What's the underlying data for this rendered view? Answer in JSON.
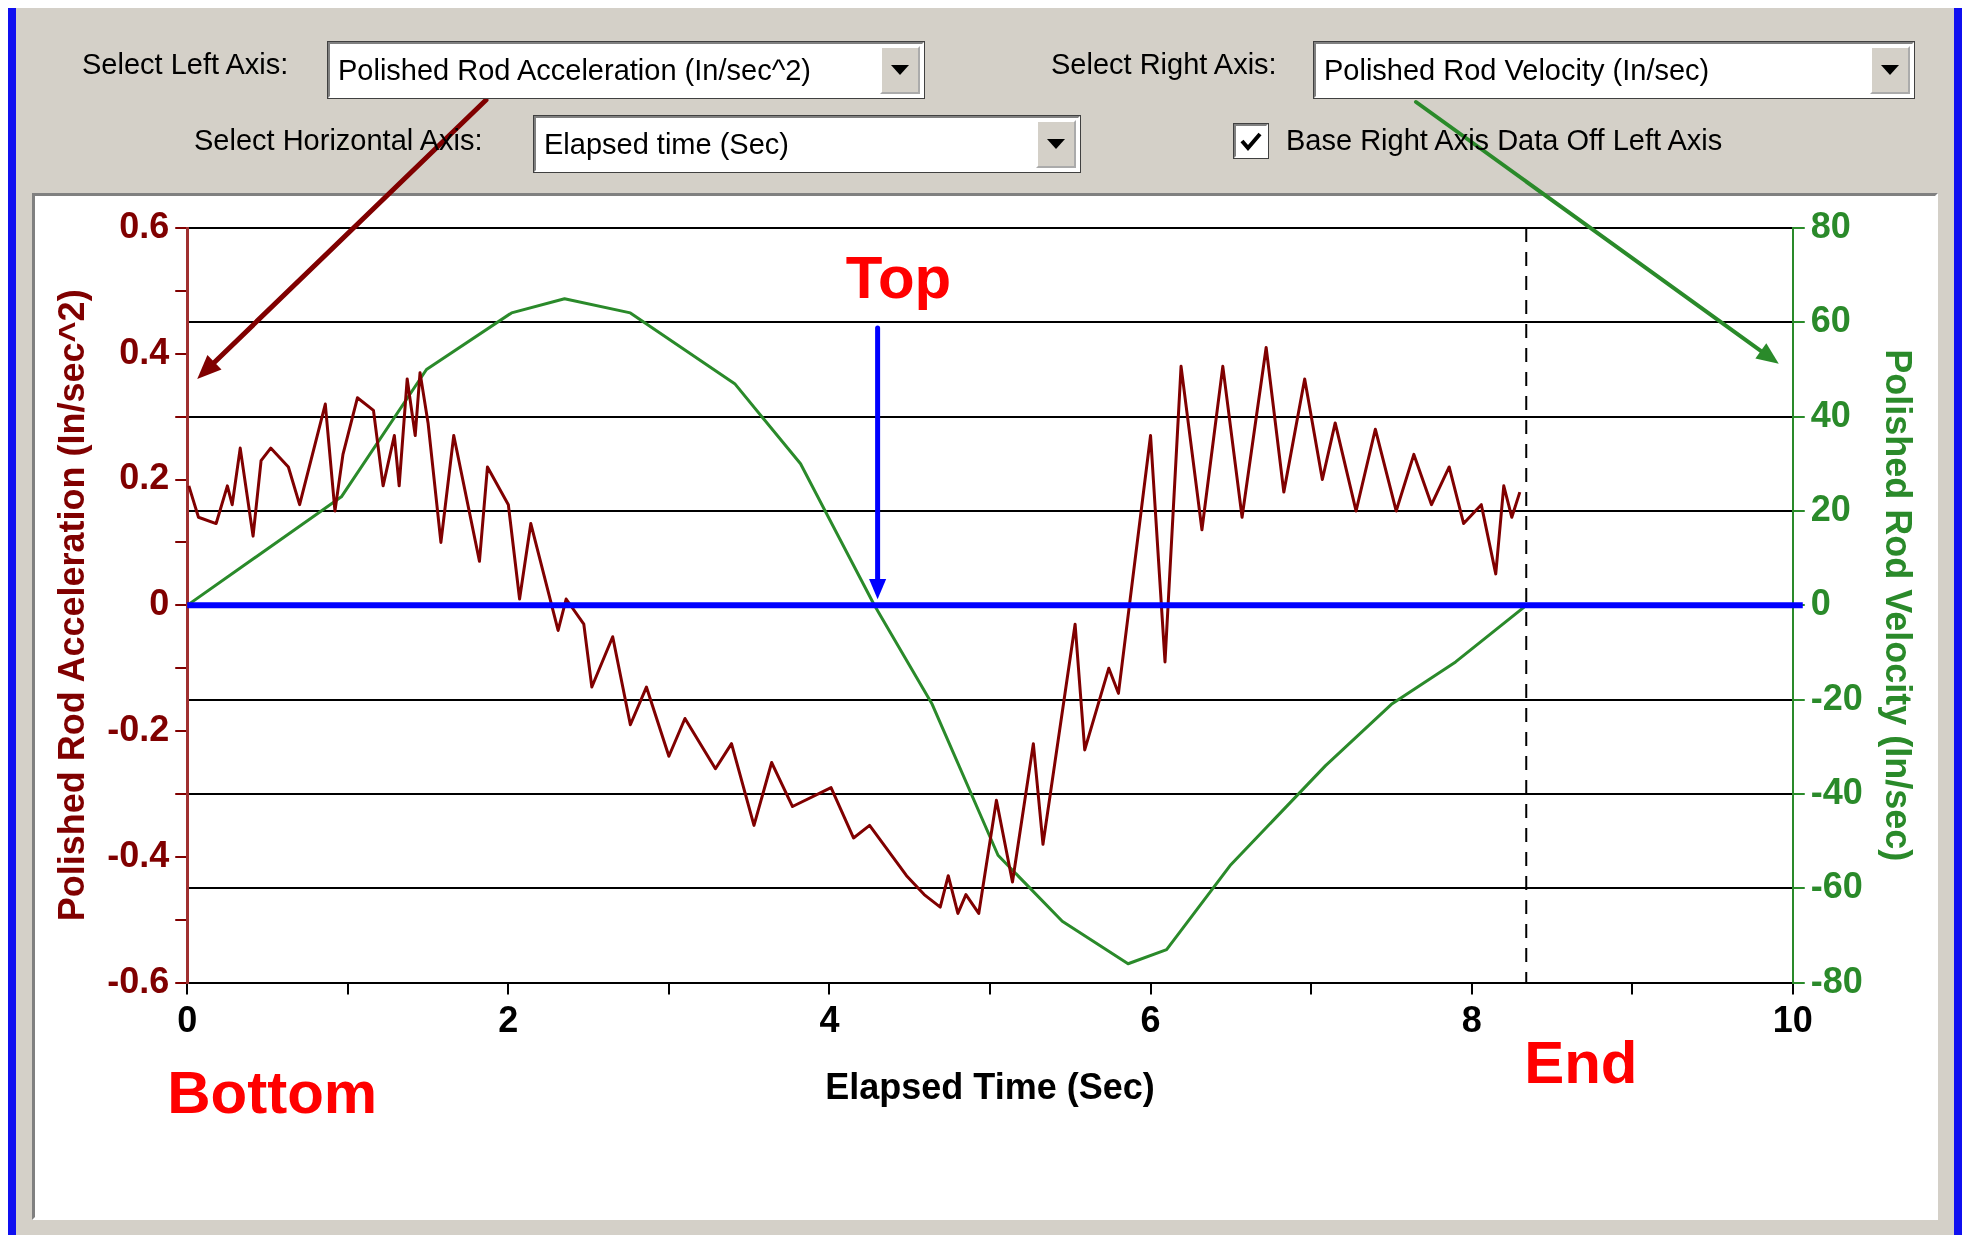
{
  "chart_data": {
    "type": "line",
    "xlabel": "Elapsed Time (Sec)",
    "ylabel": "Polished Rod Acceleration (In/sec^2)",
    "y2label": "Polished Rod Velocity (In/sec)",
    "xlim": [
      0,
      10
    ],
    "xticks": [
      0,
      {
        "value": 1,
        "label": null
      },
      2,
      {
        "value": 3,
        "label": null
      },
      4,
      {
        "value": 5,
        "label": null
      },
      6,
      {
        "value": 7,
        "label": null
      },
      8,
      {
        "value": 9,
        "label": null
      },
      10
    ],
    "ylim": [
      -0.6,
      0.6
    ],
    "yticks": [
      -0.6,
      {
        "value": -0.5,
        "label": null
      },
      -0.4,
      {
        "value": -0.3,
        "label": null
      },
      -0.2,
      {
        "value": -0.1,
        "label": null
      },
      0,
      {
        "value": 0.1,
        "label": null
      },
      0.2,
      {
        "value": 0.3,
        "label": null
      },
      0.4,
      {
        "value": 0.5,
        "label": null
      },
      0.6
    ],
    "y2lim": [
      -80,
      80
    ],
    "y2ticks": [
      -80,
      -60,
      -40,
      -20,
      0,
      20,
      40,
      60,
      80
    ],
    "grid": "y",
    "legend": false,
    "marker": "none",
    "line_style": "solid",
    "series": [
      {
        "color": "#800000",
        "x": [
          0.01,
          0.07,
          0.18,
          0.25,
          0.28,
          0.33,
          0.41,
          0.46,
          0.52,
          0.63,
          0.7,
          0.86,
          0.92,
          0.97,
          1.06,
          1.16,
          1.22,
          1.29,
          1.32,
          1.37,
          1.42,
          1.45,
          1.5,
          1.58,
          1.66,
          1.82,
          1.87,
          2.0,
          2.07,
          2.14,
          2.31,
          2.36,
          2.47,
          2.52,
          2.65,
          2.76,
          2.86,
          3.0,
          3.1,
          3.29,
          3.39,
          3.53,
          3.64,
          3.77,
          4.01,
          4.15,
          4.25,
          4.48,
          4.59,
          4.69,
          4.74,
          4.8,
          4.85,
          4.93,
          5.04,
          5.14,
          5.27,
          5.33,
          5.53,
          5.59,
          5.74,
          5.8,
          6.0,
          6.09,
          6.19,
          6.32,
          6.45,
          6.57,
          6.72,
          6.83,
          6.96,
          7.07,
          7.15,
          7.28,
          7.4,
          7.53,
          7.64,
          7.75,
          7.86,
          7.95,
          8.06,
          8.15,
          8.2,
          8.25,
          8.3
        ],
        "values": [
          0.19,
          0.14,
          0.13,
          0.19,
          0.16,
          0.25,
          0.11,
          0.23,
          0.25,
          0.22,
          0.16,
          0.32,
          0.15,
          0.24,
          0.33,
          0.31,
          0.19,
          0.27,
          0.19,
          0.36,
          0.27,
          0.37,
          0.29,
          0.1,
          0.27,
          0.07,
          0.22,
          0.16,
          0.01,
          0.13,
          -0.04,
          0.01,
          -0.03,
          -0.13,
          -0.05,
          -0.19,
          -0.13,
          -0.24,
          -0.18,
          -0.26,
          -0.22,
          -0.35,
          -0.25,
          -0.32,
          -0.29,
          -0.37,
          -0.35,
          -0.43,
          -0.46,
          -0.48,
          -0.43,
          -0.49,
          -0.46,
          -0.49,
          -0.31,
          -0.44,
          -0.22,
          -0.38,
          -0.03,
          -0.23,
          -0.1,
          -0.14,
          0.27,
          -0.09,
          0.38,
          0.12,
          0.38,
          0.14,
          0.41,
          0.18,
          0.36,
          0.2,
          0.29,
          0.15,
          0.28,
          0.15,
          0.24,
          0.16,
          0.22,
          0.13,
          0.16,
          0.05,
          0.19,
          0.14,
          0.18
        ]
      },
      {
        "color": "#2a8a2a",
        "axis": "y2",
        "x": [
          0,
          0.96,
          1.49,
          2.02,
          2.35,
          2.76,
          3.41,
          3.82,
          4.28,
          4.64,
          5.05,
          5.45,
          5.86,
          6.1,
          6.5,
          7.09,
          7.5,
          7.9,
          8.34
        ],
        "values": [
          0,
          23,
          50,
          62,
          65,
          62,
          47,
          30,
          0,
          -21,
          -53,
          -67,
          -76,
          -73,
          -55,
          -34,
          -21,
          -12,
          0
        ]
      }
    ],
    "ref_lines": [
      {
        "axis": "y",
        "value": 0,
        "color": "#0000ff",
        "line_style": "solid"
      },
      {
        "axis": "x",
        "value": 8.34,
        "color": "#000000",
        "line_style": "dashed"
      }
    ],
    "annotations": [
      "Select Left Axis:",
      "Polished Rod Acceleration (In/sec^2)",
      "Select Right Axis:",
      "Polished Rod Velocity (In/sec)",
      "Select Horizontal Axis:",
      "Elapsed time (Sec)",
      "Base Right Axis Data Off Left Axis",
      "Top",
      "Bottom",
      "End"
    ]
  }
}
